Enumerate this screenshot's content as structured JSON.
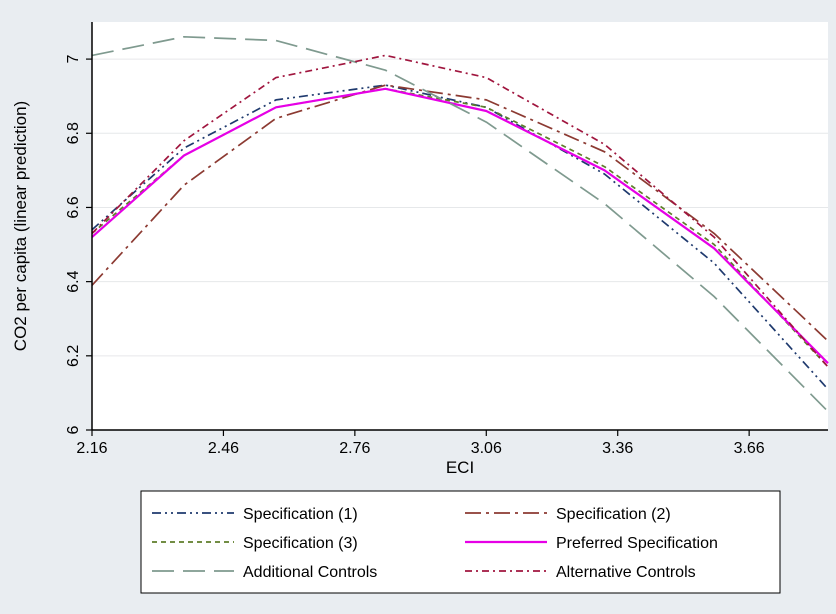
{
  "chart_data": {
    "type": "line",
    "title": "",
    "xlabel": "ECI",
    "ylabel": "CO2 per capita (linear prediction)",
    "xlim": [
      2.16,
      3.84
    ],
    "ylim": [
      6.0,
      7.1
    ],
    "xticks": [
      "2.16",
      "2.46",
      "2.76",
      "3.06",
      "3.36",
      "3.66"
    ],
    "yticks": [
      "6",
      "6.2",
      "6.4",
      "6.6",
      "6.8",
      "7"
    ],
    "grid": "horizontal",
    "legend_position": "bottom",
    "series": [
      {
        "name": "Specification (1)",
        "color": "#1f3a6e",
        "dash": "dash-dot-dot",
        "x": [
          2.16,
          2.37,
          2.58,
          2.83,
          3.06,
          3.33,
          3.58,
          3.84
        ],
        "y": [
          6.54,
          6.76,
          6.89,
          6.93,
          6.87,
          6.69,
          6.45,
          6.11
        ]
      },
      {
        "name": "Specification (2)",
        "color": "#8c3a32",
        "dash": "long-dash-dot",
        "x": [
          2.16,
          2.37,
          2.58,
          2.83,
          3.06,
          3.33,
          3.58,
          3.84
        ],
        "y": [
          6.39,
          6.66,
          6.84,
          6.93,
          6.89,
          6.75,
          6.53,
          6.24
        ]
      },
      {
        "name": "Specification (3)",
        "color": "#5e7d2a",
        "dash": "short-dash",
        "x": [
          2.16,
          2.37,
          2.58,
          2.83,
          3.06,
          3.33,
          3.58,
          3.84
        ],
        "y": [
          6.53,
          6.74,
          6.87,
          6.92,
          6.87,
          6.71,
          6.5,
          6.17
        ]
      },
      {
        "name": "Preferred Specification",
        "color": "#e600e6",
        "dash": "solid",
        "x": [
          2.16,
          2.37,
          2.58,
          2.83,
          3.06,
          3.33,
          3.58,
          3.84
        ],
        "y": [
          6.52,
          6.74,
          6.87,
          6.92,
          6.86,
          6.7,
          6.49,
          6.18
        ]
      },
      {
        "name": "Additional Controls",
        "color": "#7f9a8f",
        "dash": "long-dash",
        "x": [
          2.16,
          2.37,
          2.58,
          2.83,
          3.06,
          3.33,
          3.58,
          3.84
        ],
        "y": [
          7.01,
          7.06,
          7.05,
          6.97,
          6.83,
          6.61,
          6.36,
          6.05
        ]
      },
      {
        "name": "Alternative Controls",
        "color": "#a0153e",
        "dash": "dash-dot",
        "x": [
          2.16,
          2.37,
          2.58,
          2.83,
          3.06,
          3.33,
          3.58,
          3.84
        ],
        "y": [
          6.53,
          6.78,
          6.95,
          7.01,
          6.95,
          6.77,
          6.52,
          6.17
        ]
      }
    ]
  }
}
